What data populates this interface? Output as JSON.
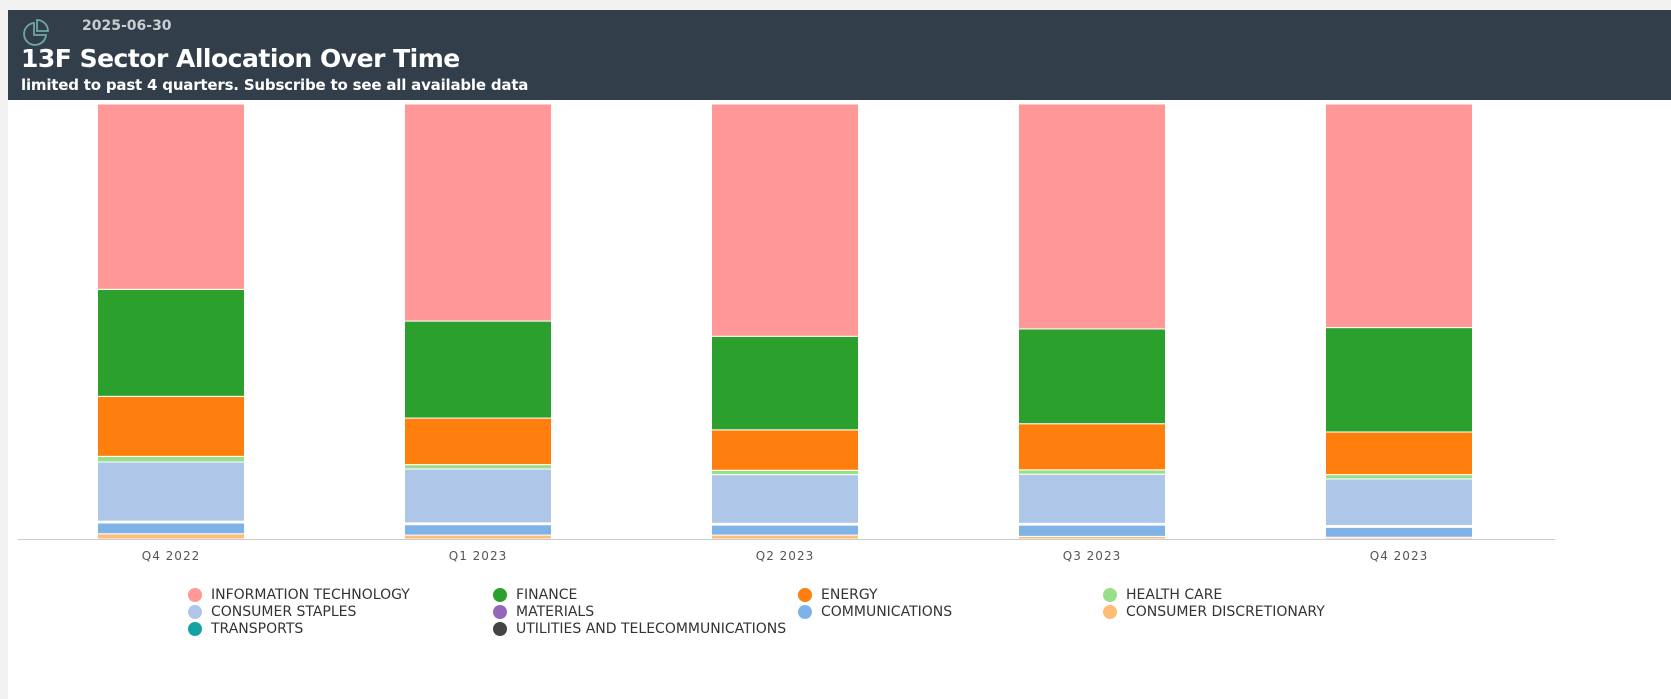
{
  "header": {
    "date": "2025-06-30",
    "title": "13F Sector Allocation Over Time",
    "subtitle": "limited to past 4 quarters. Subscribe to see all available data",
    "icon": "pie-chart-icon"
  },
  "chart_data": {
    "type": "bar",
    "stacked": true,
    "normalized_percent": true,
    "categories": [
      "Q4 2022",
      "Q1 2023",
      "Q2 2023",
      "Q3 2023",
      "Q4 2023"
    ],
    "ylim": [
      0,
      100
    ],
    "grid": false,
    "legend_position": "bottom",
    "series": [
      {
        "name": "CONSUMER DISCRETIONARY",
        "color": "#ffbb78",
        "values": [
          1.2,
          0.9,
          0.9,
          0.6,
          0.4
        ]
      },
      {
        "name": "COMMUNICATIONS",
        "color": "#7fb3e8",
        "values": [
          2.5,
          2.4,
          2.3,
          2.6,
          2.3
        ]
      },
      {
        "name": "UTILITIES AND TELECOMMUNICATIONS",
        "color": "#444444",
        "values": [
          0.2,
          0.2,
          0.2,
          0.2,
          0.2
        ]
      },
      {
        "name": "TRANSPORTS",
        "color": "#17a2a2",
        "values": [
          0.1,
          0.1,
          0.1,
          0.1,
          0.1
        ]
      },
      {
        "name": "MATERIALS",
        "color": "#9467bd",
        "values": [
          0.1,
          0.1,
          0.1,
          0.1,
          0.1
        ]
      },
      {
        "name": "CONSUMER STAPLES",
        "color": "#aec7e8",
        "values": [
          13.6,
          12.4,
          11.2,
          11.3,
          10.7
        ]
      },
      {
        "name": "HEALTH CARE",
        "color": "#98df8a",
        "values": [
          1.3,
          1.0,
          1.0,
          1.0,
          1.0
        ]
      },
      {
        "name": "ENERGY",
        "color": "#ff7f0e",
        "values": [
          13.8,
          10.7,
          9.3,
          10.6,
          9.8
        ]
      },
      {
        "name": "FINANCE",
        "color": "#2ca02c",
        "values": [
          24.6,
          22.3,
          21.5,
          21.8,
          24.0
        ]
      },
      {
        "name": "INFORMATION TECHNOLOGY",
        "color": "#ff9896",
        "values": [
          42.6,
          49.9,
          53.4,
          51.7,
          51.4
        ]
      }
    ]
  },
  "legend": [
    {
      "name": "INFORMATION TECHNOLOGY",
      "color": "#ff9896"
    },
    {
      "name": "FINANCE",
      "color": "#2ca02c"
    },
    {
      "name": "ENERGY",
      "color": "#ff7f0e"
    },
    {
      "name": "HEALTH CARE",
      "color": "#98df8a"
    },
    {
      "name": "CONSUMER STAPLES",
      "color": "#aec7e8"
    },
    {
      "name": "MATERIALS",
      "color": "#9467bd"
    },
    {
      "name": "COMMUNICATIONS",
      "color": "#7fb3e8"
    },
    {
      "name": "CONSUMER DISCRETIONARY",
      "color": "#ffbb78"
    },
    {
      "name": "TRANSPORTS",
      "color": "#17a2a2"
    },
    {
      "name": "UTILITIES AND TELECOMMUNICATIONS",
      "color": "#444444"
    }
  ]
}
